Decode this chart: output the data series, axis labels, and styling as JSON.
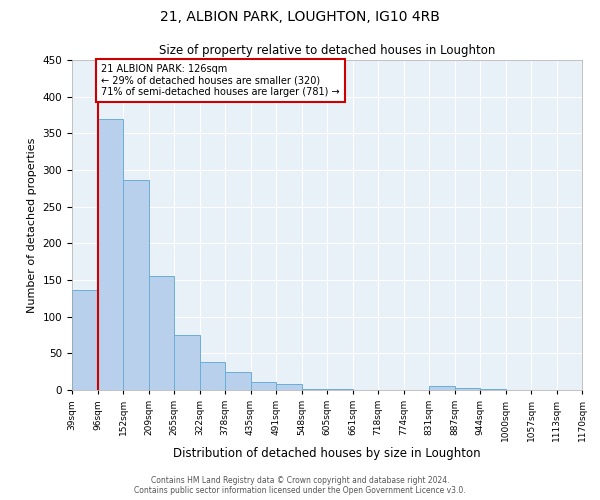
{
  "title": "21, ALBION PARK, LOUGHTON, IG10 4RB",
  "subtitle": "Size of property relative to detached houses in Loughton",
  "xlabel": "Distribution of detached houses by size in Loughton",
  "ylabel": "Number of detached properties",
  "bar_values": [
    137,
    370,
    287,
    155,
    75,
    38,
    25,
    11,
    8,
    2,
    1,
    0,
    0,
    0,
    5,
    3,
    2,
    0,
    0,
    0
  ],
  "bin_labels": [
    "39sqm",
    "96sqm",
    "152sqm",
    "209sqm",
    "265sqm",
    "322sqm",
    "378sqm",
    "435sqm",
    "491sqm",
    "548sqm",
    "605sqm",
    "661sqm",
    "718sqm",
    "774sqm",
    "831sqm",
    "887sqm",
    "944sqm",
    "1000sqm",
    "1057sqm",
    "1113sqm",
    "1170sqm"
  ],
  "bar_color": "#b8d0eb",
  "bar_edge_color": "#6aaed6",
  "vline_x_index": 1,
  "vline_color": "#cc0000",
  "annotation_text": "21 ALBION PARK: 126sqm\n← 29% of detached houses are smaller (320)\n71% of semi-detached houses are larger (781) →",
  "annotation_box_color": "#cc0000",
  "ylim": [
    0,
    450
  ],
  "yticks": [
    0,
    50,
    100,
    150,
    200,
    250,
    300,
    350,
    400,
    450
  ],
  "footer_line1": "Contains HM Land Registry data © Crown copyright and database right 2024.",
  "footer_line2": "Contains public sector information licensed under the Open Government Licence v3.0.",
  "background_color": "#e8f0f8",
  "grid_color": "#ffffff",
  "fig_bg": "#ffffff"
}
